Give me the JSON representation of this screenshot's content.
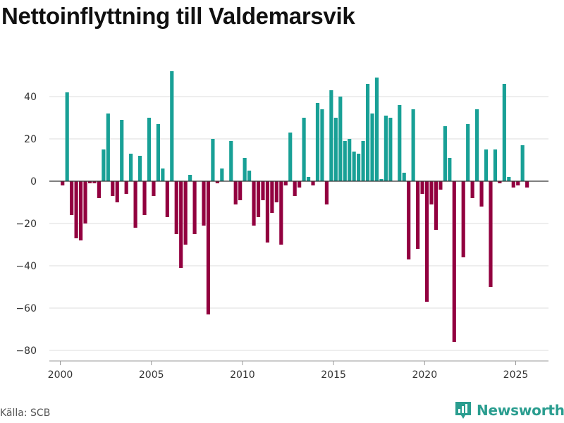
{
  "title": "Nettoinflyttning till Valdemarsvik",
  "source": "Källa: SCB",
  "brand": "Newsworthy",
  "colors": {
    "positive": "#18a096",
    "negative": "#92003f",
    "grid": "#dddddd",
    "zero": "#333333",
    "brand": "#2a9d8f"
  },
  "chart_data": {
    "type": "bar",
    "title": "Nettoinflyttning till Valdemarsvik",
    "xlabel": "",
    "ylabel": "",
    "xlim": [
      1999.4,
      2026.8
    ],
    "ylim": [
      -85,
      54
    ],
    "x_ticks": [
      2000,
      2005,
      2010,
      2015,
      2020,
      2025
    ],
    "y_ticks": [
      40,
      20,
      0,
      -20,
      -40,
      -60,
      -80
    ],
    "y_tick_labels": [
      "40",
      "20",
      "0",
      "−20",
      "−40",
      "−60",
      "−80"
    ],
    "bar_width_years": 0.2,
    "bars": [
      {
        "x": 2000.125,
        "y": -2
      },
      {
        "x": 2000.375,
        "y": 42
      },
      {
        "x": 2000.625,
        "y": -16
      },
      {
        "x": 2000.875,
        "y": -27
      },
      {
        "x": 2001.125,
        "y": -28
      },
      {
        "x": 2001.375,
        "y": -20
      },
      {
        "x": 2001.625,
        "y": -1
      },
      {
        "x": 2001.875,
        "y": -1
      },
      {
        "x": 2002.125,
        "y": -8
      },
      {
        "x": 2002.375,
        "y": 15
      },
      {
        "x": 2002.625,
        "y": 32
      },
      {
        "x": 2002.875,
        "y": -7
      },
      {
        "x": 2003.125,
        "y": -10
      },
      {
        "x": 2003.375,
        "y": 29
      },
      {
        "x": 2003.625,
        "y": -6
      },
      {
        "x": 2003.875,
        "y": 13
      },
      {
        "x": 2004.125,
        "y": -22
      },
      {
        "x": 2004.375,
        "y": 12
      },
      {
        "x": 2004.625,
        "y": -16
      },
      {
        "x": 2004.875,
        "y": 30
      },
      {
        "x": 2005.125,
        "y": -7
      },
      {
        "x": 2005.375,
        "y": 27
      },
      {
        "x": 2005.625,
        "y": 6
      },
      {
        "x": 2005.875,
        "y": -17
      },
      {
        "x": 2006.125,
        "y": 52
      },
      {
        "x": 2006.375,
        "y": -25
      },
      {
        "x": 2006.625,
        "y": -41
      },
      {
        "x": 2006.875,
        "y": -30
      },
      {
        "x": 2007.125,
        "y": 3
      },
      {
        "x": 2007.375,
        "y": -25
      },
      {
        "x": 2007.875,
        "y": -21
      },
      {
        "x": 2008.125,
        "y": -63
      },
      {
        "x": 2008.375,
        "y": 20
      },
      {
        "x": 2008.625,
        "y": -1
      },
      {
        "x": 2008.875,
        "y": 6
      },
      {
        "x": 2009.375,
        "y": 19
      },
      {
        "x": 2009.625,
        "y": -11
      },
      {
        "x": 2009.875,
        "y": -9
      },
      {
        "x": 2010.125,
        "y": 11
      },
      {
        "x": 2010.375,
        "y": 5
      },
      {
        "x": 2010.625,
        "y": -21
      },
      {
        "x": 2010.875,
        "y": -17
      },
      {
        "x": 2011.125,
        "y": -9
      },
      {
        "x": 2011.375,
        "y": -29
      },
      {
        "x": 2011.625,
        "y": -15
      },
      {
        "x": 2011.875,
        "y": -10
      },
      {
        "x": 2012.125,
        "y": -30
      },
      {
        "x": 2012.375,
        "y": -2
      },
      {
        "x": 2012.625,
        "y": 23
      },
      {
        "x": 2012.875,
        "y": -7
      },
      {
        "x": 2013.125,
        "y": -3
      },
      {
        "x": 2013.375,
        "y": 30
      },
      {
        "x": 2013.625,
        "y": 2
      },
      {
        "x": 2013.875,
        "y": -2
      },
      {
        "x": 2014.125,
        "y": 37
      },
      {
        "x": 2014.375,
        "y": 34
      },
      {
        "x": 2014.625,
        "y": -11
      },
      {
        "x": 2014.875,
        "y": 43
      },
      {
        "x": 2015.125,
        "y": 30
      },
      {
        "x": 2015.375,
        "y": 40
      },
      {
        "x": 2015.625,
        "y": 19
      },
      {
        "x": 2015.875,
        "y": 20
      },
      {
        "x": 2016.125,
        "y": 14
      },
      {
        "x": 2016.375,
        "y": 13
      },
      {
        "x": 2016.625,
        "y": 19
      },
      {
        "x": 2016.875,
        "y": 46
      },
      {
        "x": 2017.125,
        "y": 32
      },
      {
        "x": 2017.375,
        "y": 49
      },
      {
        "x": 2017.625,
        "y": 1
      },
      {
        "x": 2017.875,
        "y": 31
      },
      {
        "x": 2018.125,
        "y": 30
      },
      {
        "x": 2018.625,
        "y": 36
      },
      {
        "x": 2018.875,
        "y": 4
      },
      {
        "x": 2019.125,
        "y": -37
      },
      {
        "x": 2019.375,
        "y": 34
      },
      {
        "x": 2019.625,
        "y": -32
      },
      {
        "x": 2019.875,
        "y": -6
      },
      {
        "x": 2020.125,
        "y": -57
      },
      {
        "x": 2020.375,
        "y": -11
      },
      {
        "x": 2020.625,
        "y": -23
      },
      {
        "x": 2020.875,
        "y": -4
      },
      {
        "x": 2021.125,
        "y": 26
      },
      {
        "x": 2021.375,
        "y": 11
      },
      {
        "x": 2021.625,
        "y": -76
      },
      {
        "x": 2022.125,
        "y": -36
      },
      {
        "x": 2022.375,
        "y": 27
      },
      {
        "x": 2022.625,
        "y": -8
      },
      {
        "x": 2022.875,
        "y": 34
      },
      {
        "x": 2023.125,
        "y": -12
      },
      {
        "x": 2023.375,
        "y": 15
      },
      {
        "x": 2023.625,
        "y": -50
      },
      {
        "x": 2023.875,
        "y": 15
      },
      {
        "x": 2024.125,
        "y": -1
      },
      {
        "x": 2024.375,
        "y": 46
      },
      {
        "x": 2024.625,
        "y": 2
      },
      {
        "x": 2024.875,
        "y": -3
      },
      {
        "x": 2025.125,
        "y": -2
      },
      {
        "x": 2025.375,
        "y": 17
      },
      {
        "x": 2025.625,
        "y": -3
      }
    ]
  }
}
